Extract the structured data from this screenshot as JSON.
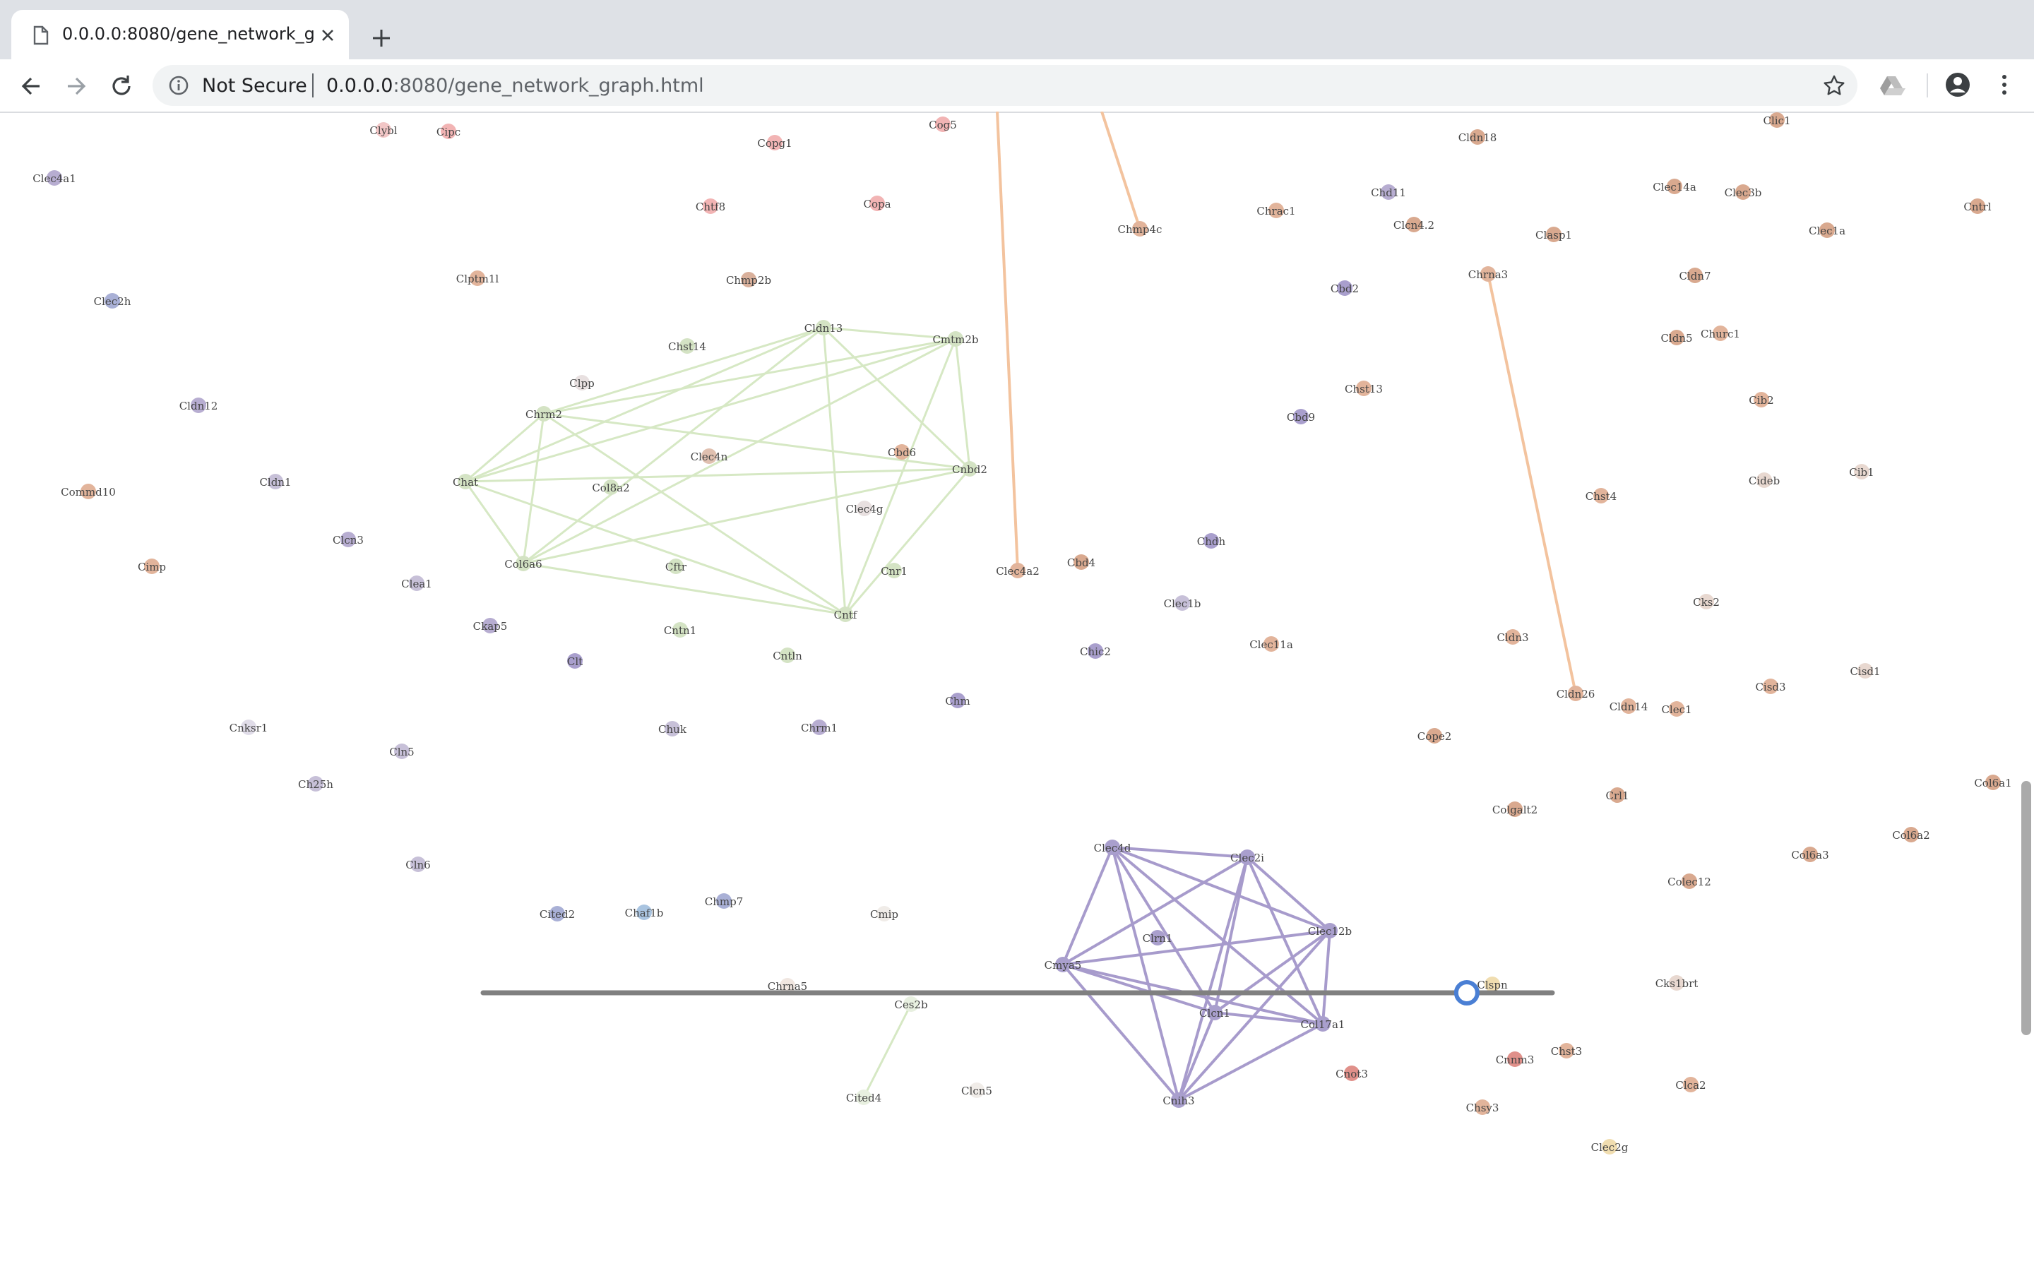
{
  "browser": {
    "tab_title": "0.0.0.0:8080/gene_network_gra",
    "security_label": "Not Secure",
    "url_host": "0.0.0.0",
    "url_path": ":8080/gene_network_graph.html"
  },
  "graph": {
    "nodes": [
      {
        "label": "Clybl",
        "color": "#f2c6c6"
      },
      {
        "label": "Cipc",
        "color": "#f2b4b4"
      },
      {
        "label": "Copg1",
        "color": "#f2b4b4"
      },
      {
        "label": "Cog5",
        "color": "#f2b4b4"
      },
      {
        "label": "Clec4a1",
        "color": "#b7add1"
      },
      {
        "label": "Chtf8",
        "color": "#f2b4b4"
      },
      {
        "label": "Copa",
        "color": "#f2b4b4"
      },
      {
        "label": "Clptm1l",
        "color": "#e2b49b"
      },
      {
        "label": "Chmp2b",
        "color": "#d9b09b"
      },
      {
        "label": "Clec2h",
        "color": "#a9b0d6"
      },
      {
        "label": "Cldn13",
        "color": "#d4e3c4"
      },
      {
        "label": "Cmtm2b",
        "color": "#d4e3c4"
      },
      {
        "label": "Chst14",
        "color": "#d4e3c4"
      },
      {
        "label": "Clpp",
        "color": "#e8e0e0"
      },
      {
        "label": "Chrm2",
        "color": "#d4e3c4"
      },
      {
        "label": "Cldn12",
        "color": "#b7add1"
      },
      {
        "label": "Clec4n",
        "color": "#e0c0b0"
      },
      {
        "label": "Cbd6",
        "color": "#e2b49b"
      },
      {
        "label": "Cnbd2",
        "color": "#d4e3c4"
      },
      {
        "label": "Chat",
        "color": "#d4e3c4"
      },
      {
        "label": "Col8a2",
        "color": "#d4e3c4"
      },
      {
        "label": "Commd10",
        "color": "#e2b49b"
      },
      {
        "label": "Cldn1",
        "color": "#c7c0d8"
      },
      {
        "label": "Clec4g",
        "color": "#e8e0e0"
      },
      {
        "label": "Clcn3",
        "color": "#b7add1"
      },
      {
        "label": "Col6a6",
        "color": "#d4e3c4"
      },
      {
        "label": "Cftr",
        "color": "#d4e3c4"
      },
      {
        "label": "Cnr1",
        "color": "#d4e3c4"
      },
      {
        "label": "Cimp",
        "color": "#e2b49b"
      },
      {
        "label": "Clea1",
        "color": "#c7c0d8"
      },
      {
        "label": "Cntf",
        "color": "#d4e3c4"
      },
      {
        "label": "Ckap5",
        "color": "#b7add1"
      },
      {
        "label": "Cntn1",
        "color": "#d4e3c4"
      },
      {
        "label": "Clt",
        "color": "#a99fcd"
      },
      {
        "label": "Cntln",
        "color": "#d4e3c4"
      },
      {
        "label": "Chm",
        "color": "#a99fcd"
      },
      {
        "label": "Cnksr1",
        "color": "#e0dce8"
      },
      {
        "label": "Cln5",
        "color": "#c7c0d8"
      },
      {
        "label": "Chuk",
        "color": "#c7c0d8"
      },
      {
        "label": "Chrm1",
        "color": "#b7add1"
      },
      {
        "label": "Ch25h",
        "color": "#c7c0d8"
      },
      {
        "label": "Cln6",
        "color": "#c7c0d8"
      },
      {
        "label": "Cited2",
        "color": "#a9b0d6"
      },
      {
        "label": "Chaf1b",
        "color": "#a9c4e0"
      },
      {
        "label": "Chmp7",
        "color": "#a9b0d6"
      },
      {
        "label": "Cmip",
        "color": "#f0ece8"
      },
      {
        "label": "Chrna5",
        "color": "#f0e6e0"
      },
      {
        "label": "Ces2b",
        "color": "#e8f0e0"
      },
      {
        "label": "Cited4",
        "color": "#e8f0e0"
      },
      {
        "label": "Clcn5",
        "color": "#f0ece8"
      },
      {
        "label": "Chmp4c",
        "color": "#e2b49b"
      },
      {
        "label": "Chrac1",
        "color": "#e2b49b"
      },
      {
        "label": "Chd11",
        "color": "#b7add1"
      },
      {
        "label": "Clcn4.2",
        "color": "#d9a98f"
      },
      {
        "label": "Cldn18",
        "color": "#d9a98f"
      },
      {
        "label": "Clic1",
        "color": "#d9a98f"
      },
      {
        "label": "Clec14a",
        "color": "#d9a98f"
      },
      {
        "label": "Clec3b",
        "color": "#d9a98f"
      },
      {
        "label": "Clasp1",
        "color": "#d9a98f"
      },
      {
        "label": "Clec1a",
        "color": "#d9a98f"
      },
      {
        "label": "Cntrl",
        "color": "#d9a98f"
      },
      {
        "label": "Cbd2",
        "color": "#a99fcd"
      },
      {
        "label": "Chrna3",
        "color": "#e2b49b"
      },
      {
        "label": "Cldn7",
        "color": "#d9a98f"
      },
      {
        "label": "Cldn5",
        "color": "#d9a98f"
      },
      {
        "label": "Churc1",
        "color": "#e2b49b"
      },
      {
        "label": "Chst13",
        "color": "#e2b49b"
      },
      {
        "label": "Cbd9",
        "color": "#a99fcd"
      },
      {
        "label": "Cib2",
        "color": "#e2b49b"
      },
      {
        "label": "Chst4",
        "color": "#e2b49b"
      },
      {
        "label": "Cideb",
        "color": "#e8d8d0"
      },
      {
        "label": "Cib1",
        "color": "#e8d8d0"
      },
      {
        "label": "Chdh",
        "color": "#a99fcd"
      },
      {
        "label": "Clec4a2",
        "color": "#e2b49b"
      },
      {
        "label": "Cbd4",
        "color": "#d9a98f"
      },
      {
        "label": "Clec1b",
        "color": "#c7c0d8"
      },
      {
        "label": "Cks2",
        "color": "#e8d8d0"
      },
      {
        "label": "Chic2",
        "color": "#a99fcd"
      },
      {
        "label": "Clec11a",
        "color": "#e2b49b"
      },
      {
        "label": "Cldn3",
        "color": "#e2b49b"
      },
      {
        "label": "Cisd3",
        "color": "#e2b49b"
      },
      {
        "label": "Cisd1",
        "color": "#e8d8d0"
      },
      {
        "label": "Cldn26",
        "color": "#e2b49b"
      },
      {
        "label": "Cldn14",
        "color": "#e2b49b"
      },
      {
        "label": "Clec1",
        "color": "#e2b49b"
      },
      {
        "label": "Cope2",
        "color": "#d9a98f"
      },
      {
        "label": "Col6a1",
        "color": "#d9a98f"
      },
      {
        "label": "Crl1",
        "color": "#d9a98f"
      },
      {
        "label": "Colgalt2",
        "color": "#d9a98f"
      },
      {
        "label": "Col6a2",
        "color": "#d9a98f"
      },
      {
        "label": "Col6a3",
        "color": "#d9a98f"
      },
      {
        "label": "Colec12",
        "color": "#d9a98f"
      },
      {
        "label": "Clec4d",
        "color": "#a99fcd"
      },
      {
        "label": "Clec2i",
        "color": "#a99fcd"
      },
      {
        "label": "Clrn1",
        "color": "#a99fcd"
      },
      {
        "label": "Clec12b",
        "color": "#a99fcd"
      },
      {
        "label": "Cmya5",
        "color": "#a99fcd"
      },
      {
        "label": "Clspn",
        "color": "#f0ddb0"
      },
      {
        "label": "Clcn1",
        "color": "#a99fcd"
      },
      {
        "label": "Col17a1",
        "color": "#a99fcd"
      },
      {
        "label": "Cks1brt",
        "color": "#e8d8d0"
      },
      {
        "label": "Cnnm3",
        "color": "#e0908a"
      },
      {
        "label": "Chst3",
        "color": "#e2b49b"
      },
      {
        "label": "Cnot3",
        "color": "#e0908a"
      },
      {
        "label": "Clca2",
        "color": "#e2b49b"
      },
      {
        "label": "Cnih3",
        "color": "#a99fcd"
      },
      {
        "label": "Chsy3",
        "color": "#e2b49b"
      },
      {
        "label": "Clec2g",
        "color": "#f0ddb0"
      }
    ],
    "edges": [
      {
        "from": "Cldn13",
        "to": "Cmtm2b",
        "group": "green"
      },
      {
        "from": "Cldn13",
        "to": "Chrm2",
        "group": "green"
      },
      {
        "from": "Cldn13",
        "to": "Chat",
        "group": "green"
      },
      {
        "from": "Cldn13",
        "to": "Col6a6",
        "group": "green"
      },
      {
        "from": "Cldn13",
        "to": "Cntf",
        "group": "green"
      },
      {
        "from": "Cldn13",
        "to": "Cnbd2",
        "group": "green"
      },
      {
        "from": "Cmtm2b",
        "to": "Chrm2",
        "group": "green"
      },
      {
        "from": "Cmtm2b",
        "to": "Chat",
        "group": "green"
      },
      {
        "from": "Cmtm2b",
        "to": "Col6a6",
        "group": "green"
      },
      {
        "from": "Cmtm2b",
        "to": "Cntf",
        "group": "green"
      },
      {
        "from": "Cmtm2b",
        "to": "Cnbd2",
        "group": "green"
      },
      {
        "from": "Chrm2",
        "to": "Chat",
        "group": "green"
      },
      {
        "from": "Chrm2",
        "to": "Col6a6",
        "group": "green"
      },
      {
        "from": "Chrm2",
        "to": "Cntf",
        "group": "green"
      },
      {
        "from": "Chrm2",
        "to": "Cnbd2",
        "group": "green"
      },
      {
        "from": "Chat",
        "to": "Col6a6",
        "group": "green"
      },
      {
        "from": "Chat",
        "to": "Cntf",
        "group": "green"
      },
      {
        "from": "Chat",
        "to": "Cnbd2",
        "group": "green"
      },
      {
        "from": "Col6a6",
        "to": "Cntf",
        "group": "green"
      },
      {
        "from": "Col6a6",
        "to": "Cnbd2",
        "group": "green"
      },
      {
        "from": "Cntf",
        "to": "Cnbd2",
        "group": "green"
      },
      {
        "from": "Ces2b",
        "to": "Cited4",
        "group": "green"
      },
      {
        "from": "Clec4d",
        "to": "Clec2i",
        "group": "purple"
      },
      {
        "from": "Clec4d",
        "to": "Clec12b",
        "group": "purple"
      },
      {
        "from": "Clec4d",
        "to": "Cmya5",
        "group": "purple"
      },
      {
        "from": "Clec4d",
        "to": "Clcn1",
        "group": "purple"
      },
      {
        "from": "Clec4d",
        "to": "Col17a1",
        "group": "purple"
      },
      {
        "from": "Clec4d",
        "to": "Cnih3",
        "group": "purple"
      },
      {
        "from": "Clec2i",
        "to": "Clec12b",
        "group": "purple"
      },
      {
        "from": "Clec2i",
        "to": "Cmya5",
        "group": "purple"
      },
      {
        "from": "Clec2i",
        "to": "Clcn1",
        "group": "purple"
      },
      {
        "from": "Clec2i",
        "to": "Col17a1",
        "group": "purple"
      },
      {
        "from": "Clec2i",
        "to": "Cnih3",
        "group": "purple"
      },
      {
        "from": "Clec12b",
        "to": "Cmya5",
        "group": "purple"
      },
      {
        "from": "Clec12b",
        "to": "Clcn1",
        "group": "purple"
      },
      {
        "from": "Clec12b",
        "to": "Col17a1",
        "group": "purple"
      },
      {
        "from": "Clec12b",
        "to": "Cnih3",
        "group": "purple"
      },
      {
        "from": "Cmya5",
        "to": "Clcn1",
        "group": "purple"
      },
      {
        "from": "Cmya5",
        "to": "Col17a1",
        "group": "purple"
      },
      {
        "from": "Cmya5",
        "to": "Cnih3",
        "group": "purple"
      },
      {
        "from": "Clcn1",
        "to": "Col17a1",
        "group": "purple"
      },
      {
        "from": "Clcn1",
        "to": "Cnih3",
        "group": "purple"
      },
      {
        "from": "Col17a1",
        "to": "Cnih3",
        "group": "purple"
      },
      {
        "from": "Clec4a2",
        "to": "top-edge-1",
        "group": "orange"
      },
      {
        "from": "Chmp4c",
        "to": "top-edge-2",
        "group": "orange"
      },
      {
        "from": "Chrna3",
        "to": "Cldn26",
        "group": "orange"
      }
    ],
    "slider_value": 0.92
  },
  "colors": {
    "green_edge": "#d6e8c4",
    "purple_edge": "#a79bcc",
    "orange_edge": "#f3c39e",
    "slider_track": "#808080",
    "slider_handle": "#4a7fd4"
  }
}
